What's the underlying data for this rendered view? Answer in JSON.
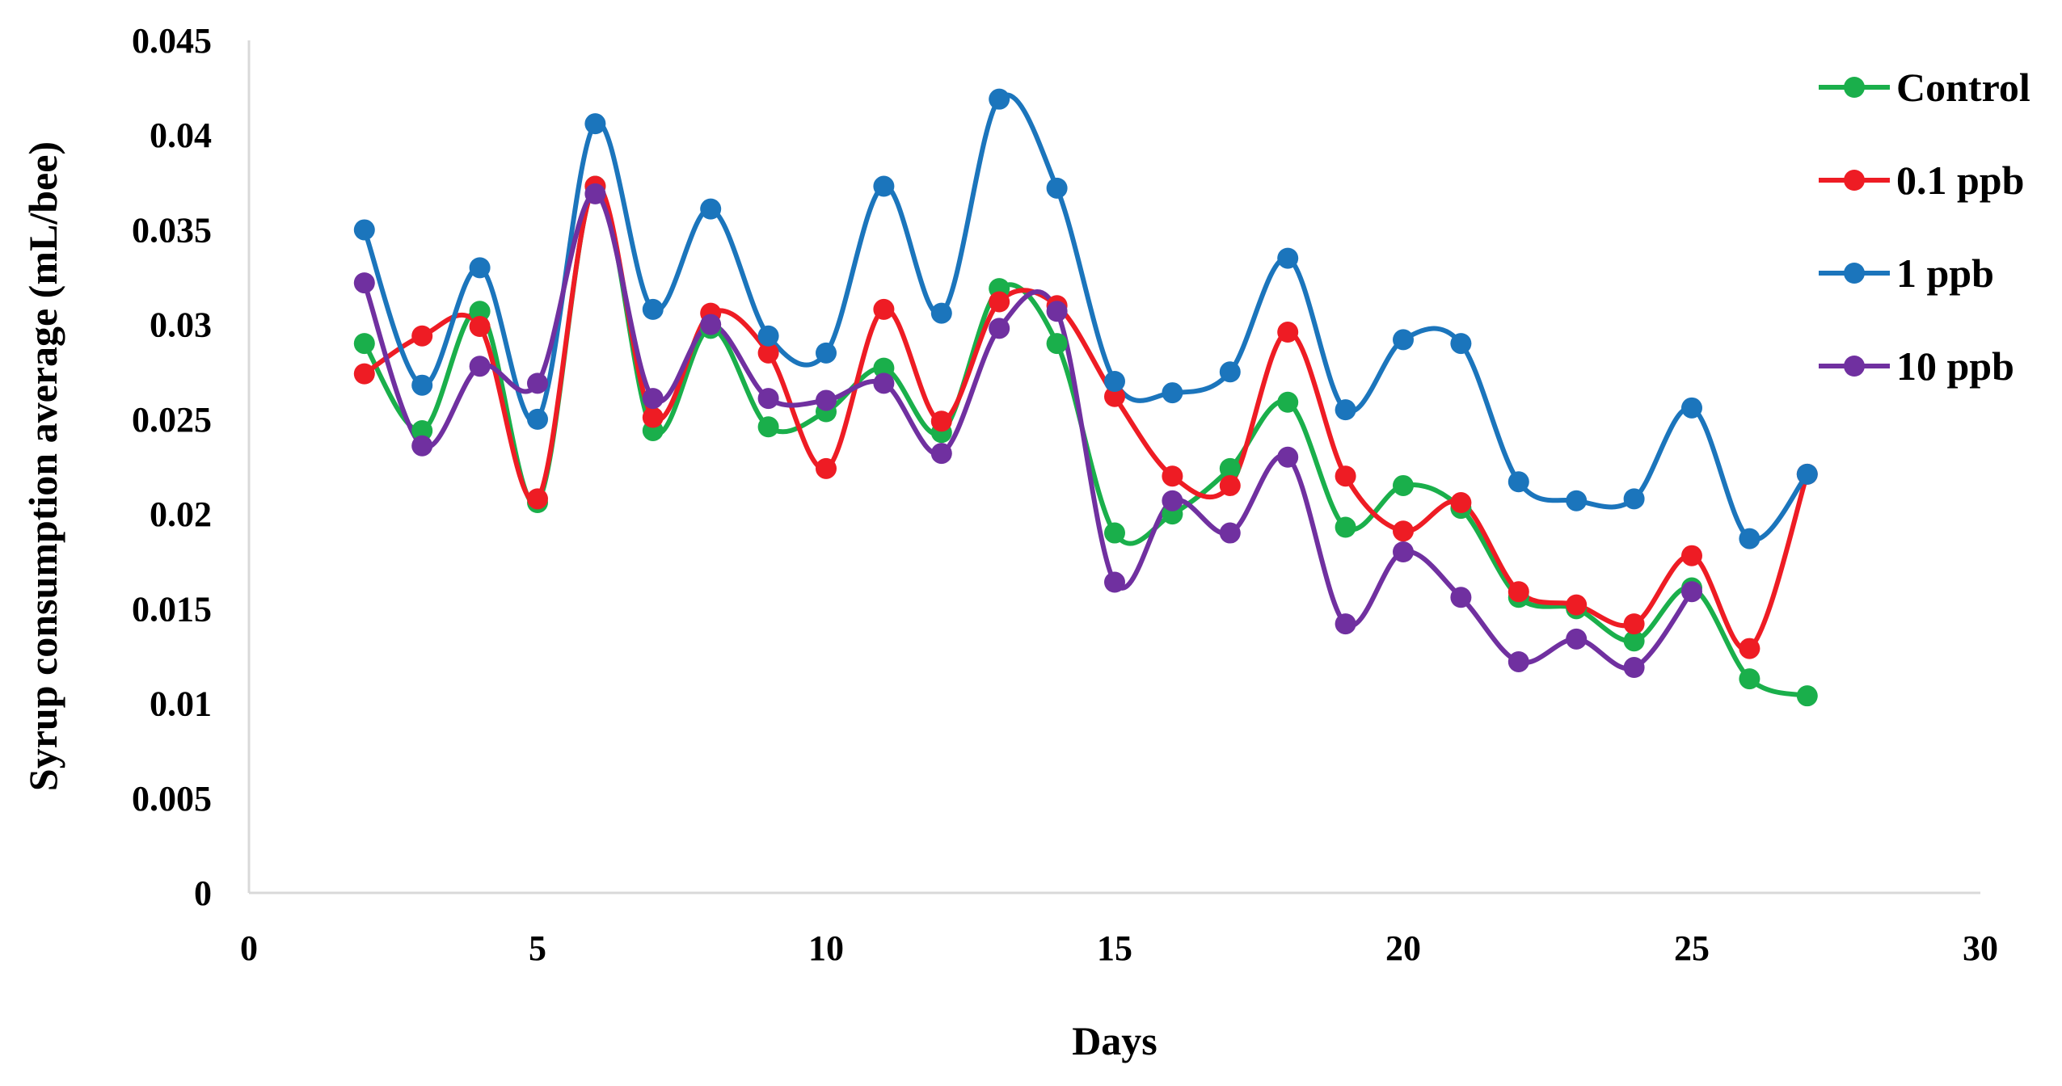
{
  "chart_data": {
    "type": "line",
    "title": "",
    "xlabel": "Days",
    "ylabel": "Syrup consumption average (mL/bee)",
    "xlim": [
      0,
      30
    ],
    "ylim": [
      0,
      0.045
    ],
    "xticks": [
      0,
      5,
      10,
      15,
      20,
      25,
      30
    ],
    "xtick_labels": [
      "0",
      "5",
      "10",
      "15",
      "20",
      "25",
      "30"
    ],
    "yticks": [
      0,
      0.005,
      0.01,
      0.015,
      0.02,
      0.025,
      0.03,
      0.035,
      0.04,
      0.045
    ],
    "ytick_labels": [
      "0",
      "0.005",
      "0.01",
      "0.015",
      "0.02",
      "0.025",
      "0.03",
      "0.035",
      "0.04",
      "0.045"
    ],
    "grid": false,
    "smooth": true,
    "legend_position": "right",
    "x": [
      2,
      3,
      4,
      5,
      6,
      7,
      8,
      9,
      10,
      11,
      12,
      13,
      14,
      15,
      16,
      17,
      18,
      19,
      20,
      21,
      22,
      23,
      24,
      25,
      26,
      27
    ],
    "series": [
      {
        "name": "Control",
        "color": "#1aaf4b",
        "values": [
          0.029,
          0.0244,
          0.0307,
          0.0206,
          0.0373,
          0.0244,
          0.0298,
          0.0246,
          0.0254,
          0.0277,
          0.0243,
          0.0319,
          0.029,
          0.019,
          0.02,
          0.0224,
          0.0259,
          0.0193,
          0.0215,
          0.0203,
          0.0156,
          0.015,
          0.0133,
          0.0161,
          0.0113,
          0.0104
        ]
      },
      {
        "name": "0.1 ppb",
        "color": "#ee1c24",
        "values": [
          0.0274,
          0.0294,
          0.0299,
          0.0208,
          0.0373,
          0.0251,
          0.0306,
          0.0285,
          0.0224,
          0.0308,
          0.0249,
          0.0312,
          0.031,
          0.0262,
          0.022,
          0.0215,
          0.0296,
          0.022,
          0.0191,
          0.0206,
          0.0159,
          0.0152,
          0.0142,
          0.0178,
          0.0129,
          0.0221
        ]
      },
      {
        "name": "1 ppb",
        "color": "#1b75bc",
        "values": [
          0.035,
          0.0268,
          0.033,
          0.025,
          0.0406,
          0.0308,
          0.0361,
          0.0294,
          0.0285,
          0.0373,
          0.0306,
          0.0419,
          0.0372,
          0.027,
          0.0264,
          0.0275,
          0.0335,
          0.0255,
          0.0292,
          0.029,
          0.0217,
          0.0207,
          0.0208,
          0.0256,
          0.0187,
          0.0221
        ]
      },
      {
        "name": "10 ppb",
        "color": "#7030a0",
        "values": [
          0.0322,
          0.0236,
          0.0278,
          0.0269,
          0.0369,
          0.0261,
          0.03,
          0.0261,
          0.026,
          0.0269,
          0.0232,
          0.0298,
          0.0307,
          0.0164,
          0.0207,
          0.019,
          0.023,
          0.0142,
          0.018,
          0.0156,
          0.0122,
          0.0134,
          0.0119,
          0.0159,
          null,
          null
        ]
      }
    ]
  }
}
